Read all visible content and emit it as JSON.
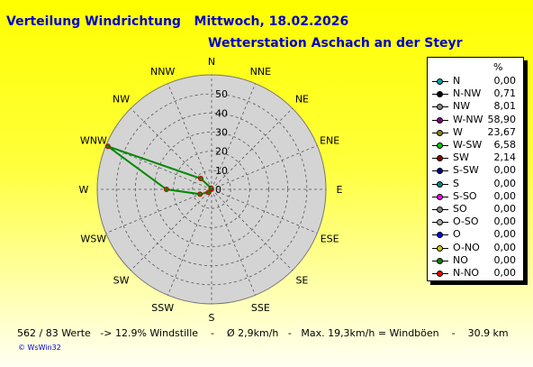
{
  "header": {
    "title": "Verteilung Windrichtung   Mittwoch, 18.02.2026",
    "station": "Wetterstation Aschach an der Steyr"
  },
  "chart_data": {
    "type": "radar",
    "directions": [
      "N",
      "NNE",
      "NE",
      "ENE",
      "E",
      "ESE",
      "SE",
      "SSE",
      "S",
      "SSW",
      "SW",
      "WSW",
      "W",
      "WNW",
      "NW",
      "NNW"
    ],
    "radial_ticks": [
      0,
      10,
      20,
      30,
      40,
      50
    ],
    "rmax": 60,
    "values": [
      0,
      0,
      0,
      0,
      0,
      0,
      0,
      0,
      0,
      0,
      2.14,
      6.58,
      23.67,
      58.9,
      8.01,
      0.71
    ],
    "line_color": "#008800",
    "marker_color": "#cc0000",
    "plot_bg": "#d4d4d4"
  },
  "legend": {
    "header": "%",
    "items": [
      {
        "name": "N",
        "value": "0,00",
        "color": "#00aaaa"
      },
      {
        "name": "N-NW",
        "value": "0,71",
        "color": "#000000"
      },
      {
        "name": "NW",
        "value": "8,01",
        "color": "#888888"
      },
      {
        "name": "W-NW",
        "value": "58,90",
        "color": "#880088"
      },
      {
        "name": "W",
        "value": "23,67",
        "color": "#888800"
      },
      {
        "name": "W-SW",
        "value": "6,58",
        "color": "#00cc00"
      },
      {
        "name": "SW",
        "value": "2,14",
        "color": "#880000"
      },
      {
        "name": "S-SW",
        "value": "0,00",
        "color": "#000088"
      },
      {
        "name": "S",
        "value": "0,00",
        "color": "#008888"
      },
      {
        "name": "S-SO",
        "value": "0,00",
        "color": "#ff00ff"
      },
      {
        "name": "SO",
        "value": "0,00",
        "color": "#888888"
      },
      {
        "name": "O-SO",
        "value": "0,00",
        "color": "#aaaaaa"
      },
      {
        "name": "O",
        "value": "0,00",
        "color": "#0000ff"
      },
      {
        "name": "O-NO",
        "value": "0,00",
        "color": "#cccc00"
      },
      {
        "name": "NO",
        "value": "0,00",
        "color": "#008800"
      },
      {
        "name": "N-NO",
        "value": "0,00",
        "color": "#ff0000"
      }
    ]
  },
  "footer": {
    "stats": "562 / 83 Werte   -> 12.9% Windstille    -    Ø 2,9km/h   -   Max. 19,3km/h = Windböen    -    30.9 km",
    "brand": "© WsWin32"
  }
}
